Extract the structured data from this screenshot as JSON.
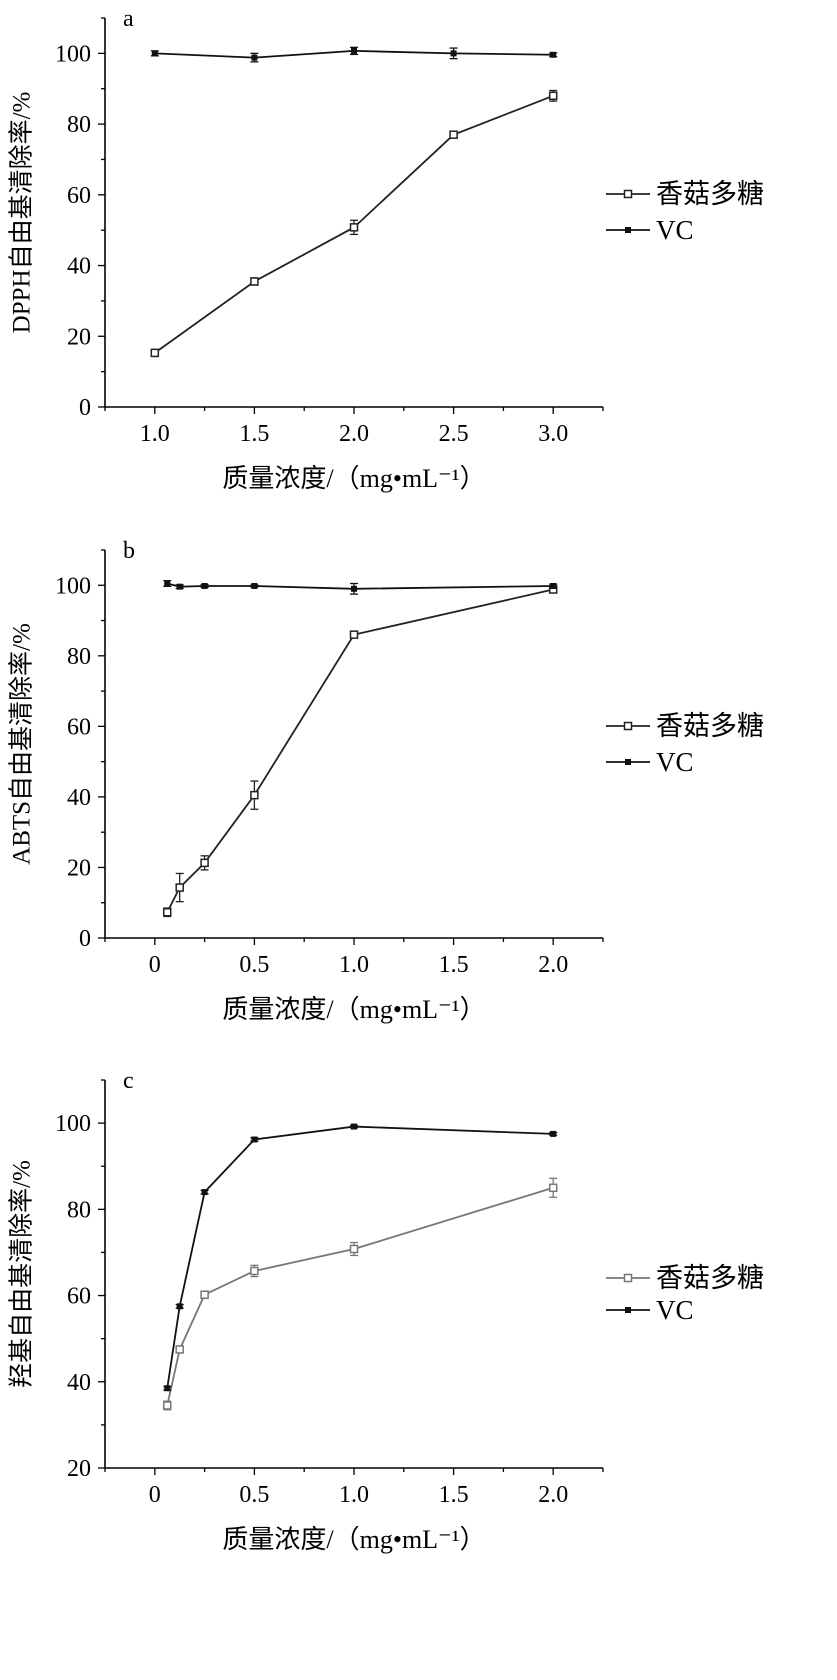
{
  "chart_data": [
    {
      "type": "line",
      "panel_label": "a",
      "xlabel": "质量浓度/（mg•mL⁻¹）",
      "ylabel": "DPPH自由基清除率/%",
      "xlim": [
        0.75,
        3.25
      ],
      "ylim": [
        0,
        110
      ],
      "xticks": [
        1.0,
        1.5,
        2.0,
        2.5,
        3.0
      ],
      "xtick_labels": [
        "1.0",
        "1.5",
        "2.0",
        "2.5",
        "3.0"
      ],
      "yticks": [
        0,
        20,
        40,
        60,
        80,
        100
      ],
      "ytick_labels": [
        "0",
        "20",
        "40",
        "60",
        "80",
        "100"
      ],
      "grid": false,
      "legend_position": "right",
      "series": [
        {
          "name": "香菇多糖",
          "marker": "open-square",
          "color": "#222222",
          "x": [
            1.0,
            1.5,
            2.0,
            2.5,
            3.0
          ],
          "y": [
            15.3,
            35.5,
            50.8,
            77.0,
            88.0
          ],
          "err": [
            1.0,
            1.0,
            2.0,
            1.0,
            1.5
          ]
        },
        {
          "name": "VC",
          "marker": "filled-square",
          "color": "#111111",
          "x": [
            1.0,
            1.5,
            2.0,
            2.5,
            3.0
          ],
          "y": [
            100.0,
            98.8,
            100.7,
            100.0,
            99.6
          ],
          "err": [
            0.7,
            1.2,
            1.0,
            1.5,
            0.5
          ]
        }
      ]
    },
    {
      "type": "line",
      "panel_label": "b",
      "xlabel": "质量浓度/（mg•mL⁻¹）",
      "ylabel": "ABTS自由基清除率/%",
      "xlim": [
        -0.25,
        2.25
      ],
      "ylim": [
        0,
        110
      ],
      "xticks": [
        0,
        0.5,
        1.0,
        1.5,
        2.0
      ],
      "xtick_labels": [
        "0",
        "0.5",
        "1.0",
        "1.5",
        "2.0"
      ],
      "yticks": [
        0,
        20,
        40,
        60,
        80,
        100
      ],
      "ytick_labels": [
        "0",
        "20",
        "40",
        "60",
        "80",
        "100"
      ],
      "grid": false,
      "legend_position": "right",
      "series": [
        {
          "name": "香菇多糖",
          "marker": "open-square",
          "color": "#222222",
          "x": [
            0.0625,
            0.125,
            0.25,
            0.5,
            1.0,
            2.0
          ],
          "y": [
            7.3,
            14.3,
            21.3,
            40.5,
            86.0,
            98.8
          ],
          "err": [
            1.2,
            4.0,
            2.0,
            4.0,
            0.8,
            0.8
          ]
        },
        {
          "name": "VC",
          "marker": "filled-square",
          "color": "#111111",
          "x": [
            0.0625,
            0.125,
            0.25,
            0.5,
            1.0,
            2.0
          ],
          "y": [
            100.5,
            99.6,
            99.8,
            99.8,
            99.0,
            99.8
          ],
          "err": [
            0.8,
            0.5,
            0.4,
            0.3,
            1.5,
            0.5
          ]
        }
      ]
    },
    {
      "type": "line",
      "panel_label": "c",
      "xlabel": "质量浓度/（mg•mL⁻¹）",
      "ylabel": "羟基自由基清除率/%",
      "xlim": [
        -0.25,
        2.25
      ],
      "ylim": [
        20,
        110
      ],
      "xticks": [
        0,
        0.5,
        1.0,
        1.5,
        2.0
      ],
      "xtick_labels": [
        "0",
        "0.5",
        "1.0",
        "1.5",
        "2.0"
      ],
      "yticks": [
        20,
        40,
        60,
        80,
        100
      ],
      "ytick_labels": [
        "20",
        "40",
        "60",
        "80",
        "100"
      ],
      "grid": false,
      "legend_position": "right",
      "series": [
        {
          "name": "香菇多糖",
          "marker": "open-square",
          "color": "#777777",
          "x": [
            0.0625,
            0.125,
            0.25,
            0.5,
            1.0,
            2.0
          ],
          "y": [
            34.5,
            47.5,
            60.2,
            65.7,
            70.8,
            85.0
          ],
          "err": [
            1.0,
            0.8,
            0.8,
            1.3,
            1.5,
            2.2
          ]
        },
        {
          "name": "VC",
          "marker": "filled-square",
          "color": "#111111",
          "x": [
            0.0625,
            0.125,
            0.25,
            0.5,
            1.0,
            2.0
          ],
          "y": [
            38.5,
            57.5,
            84.0,
            96.2,
            99.2,
            97.5
          ],
          "err": [
            0.4,
            0.4,
            0.4,
            0.4,
            0.3,
            0.3
          ]
        }
      ]
    }
  ]
}
